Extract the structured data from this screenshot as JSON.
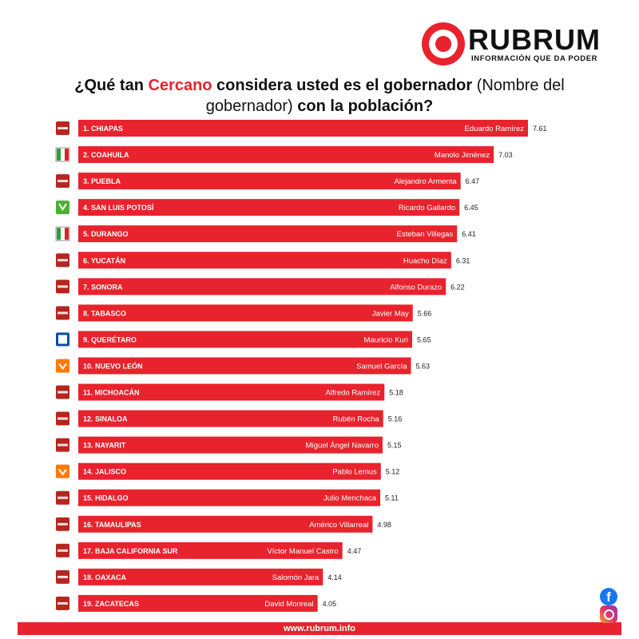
{
  "brand": {
    "name": "RUBRUM",
    "tagline": "INFORMACIÓN QUE DA PODER"
  },
  "title": {
    "part1": "¿Qué tan ",
    "highlight": "Cercano",
    "part2": " considera usted es el gobernador ",
    "part3": "(Nombre del gobernador)",
    "part4": " con la población?"
  },
  "colors": {
    "bar": "#e8232d",
    "accent": "#e8232d",
    "text": "#111111"
  },
  "chart_data": {
    "type": "bar",
    "orientation": "horizontal",
    "rows": [
      {
        "label": "1. CHIAPAS",
        "governor": "Eduardo Ramírez",
        "value": 7.61,
        "party": "morena"
      },
      {
        "label": "2. COAHUILA",
        "governor": "Manolo Jiménez",
        "value": 7.03,
        "party": "pri"
      },
      {
        "label": "3. PUEBLA",
        "governor": "Alejandro Armenta",
        "value": 6.47,
        "party": "morena"
      },
      {
        "label": "4. SAN LUIS POTOSÍ",
        "governor": "Ricardo Gallardo",
        "value": 6.45,
        "party": "verde"
      },
      {
        "label": "5. DURANGO",
        "governor": "Esteban Villegas",
        "value": 6.41,
        "party": "pri"
      },
      {
        "label": "6. YUCATÁN",
        "governor": "Huacho Díaz",
        "value": 6.31,
        "party": "morena"
      },
      {
        "label": "7. SONORA",
        "governor": "Alfonso Durazo",
        "value": 6.22,
        "party": "morena"
      },
      {
        "label": "8. TABASCO",
        "governor": "Javier May",
        "value": 5.66,
        "party": "morena"
      },
      {
        "label": "9. QUERÉTARO",
        "governor": "Mauricio Kuri",
        "value": 5.65,
        "party": "pan"
      },
      {
        "label": "10. NUEVO LEÓN",
        "governor": "Samuel García",
        "value": 5.63,
        "party": "mc"
      },
      {
        "label": "11. MICHOACÁN",
        "governor": "Alfredo Ramírez",
        "value": 5.18,
        "party": "morena"
      },
      {
        "label": "12. SINALOA",
        "governor": "Rubén Rocha",
        "value": 5.16,
        "party": "morena"
      },
      {
        "label": "13. NAYARIT",
        "governor": "Miguel Ángel Navarro",
        "value": 5.15,
        "party": "morena"
      },
      {
        "label": "14. JALISCO",
        "governor": "Pablo Lemus",
        "value": 5.12,
        "party": "mc"
      },
      {
        "label": "15. HIDALGO",
        "governor": "Julio Menchaca",
        "value": 5.11,
        "party": "morena"
      },
      {
        "label": "16. TAMAULIPAS",
        "governor": "Américo Villarreal",
        "value": 4.98,
        "party": "morena"
      },
      {
        "label": "17. BAJA CALIFORNIA SUR",
        "governor": "Víctor Manuel Castro",
        "value": 4.47,
        "party": "morena"
      },
      {
        "label": "18. OAXACA",
        "governor": "Salomón Jara",
        "value": 4.14,
        "party": "morena"
      },
      {
        "label": "19. ZACATECAS",
        "governor": "David Monreal",
        "value": 4.05,
        "party": "morena"
      }
    ],
    "party_colors": {
      "morena": "#b5261e",
      "pri": "#ffffff",
      "verde": "#4caf35",
      "pan": "#0b4ea2",
      "mc": "#ff7a00"
    },
    "xlim": [
      0,
      7.61
    ],
    "grid": false,
    "legend": "none"
  },
  "footer": {
    "url": "www.rubrum.info"
  },
  "social": {
    "facebook": "facebook-icon",
    "instagram": "instagram-icon"
  }
}
